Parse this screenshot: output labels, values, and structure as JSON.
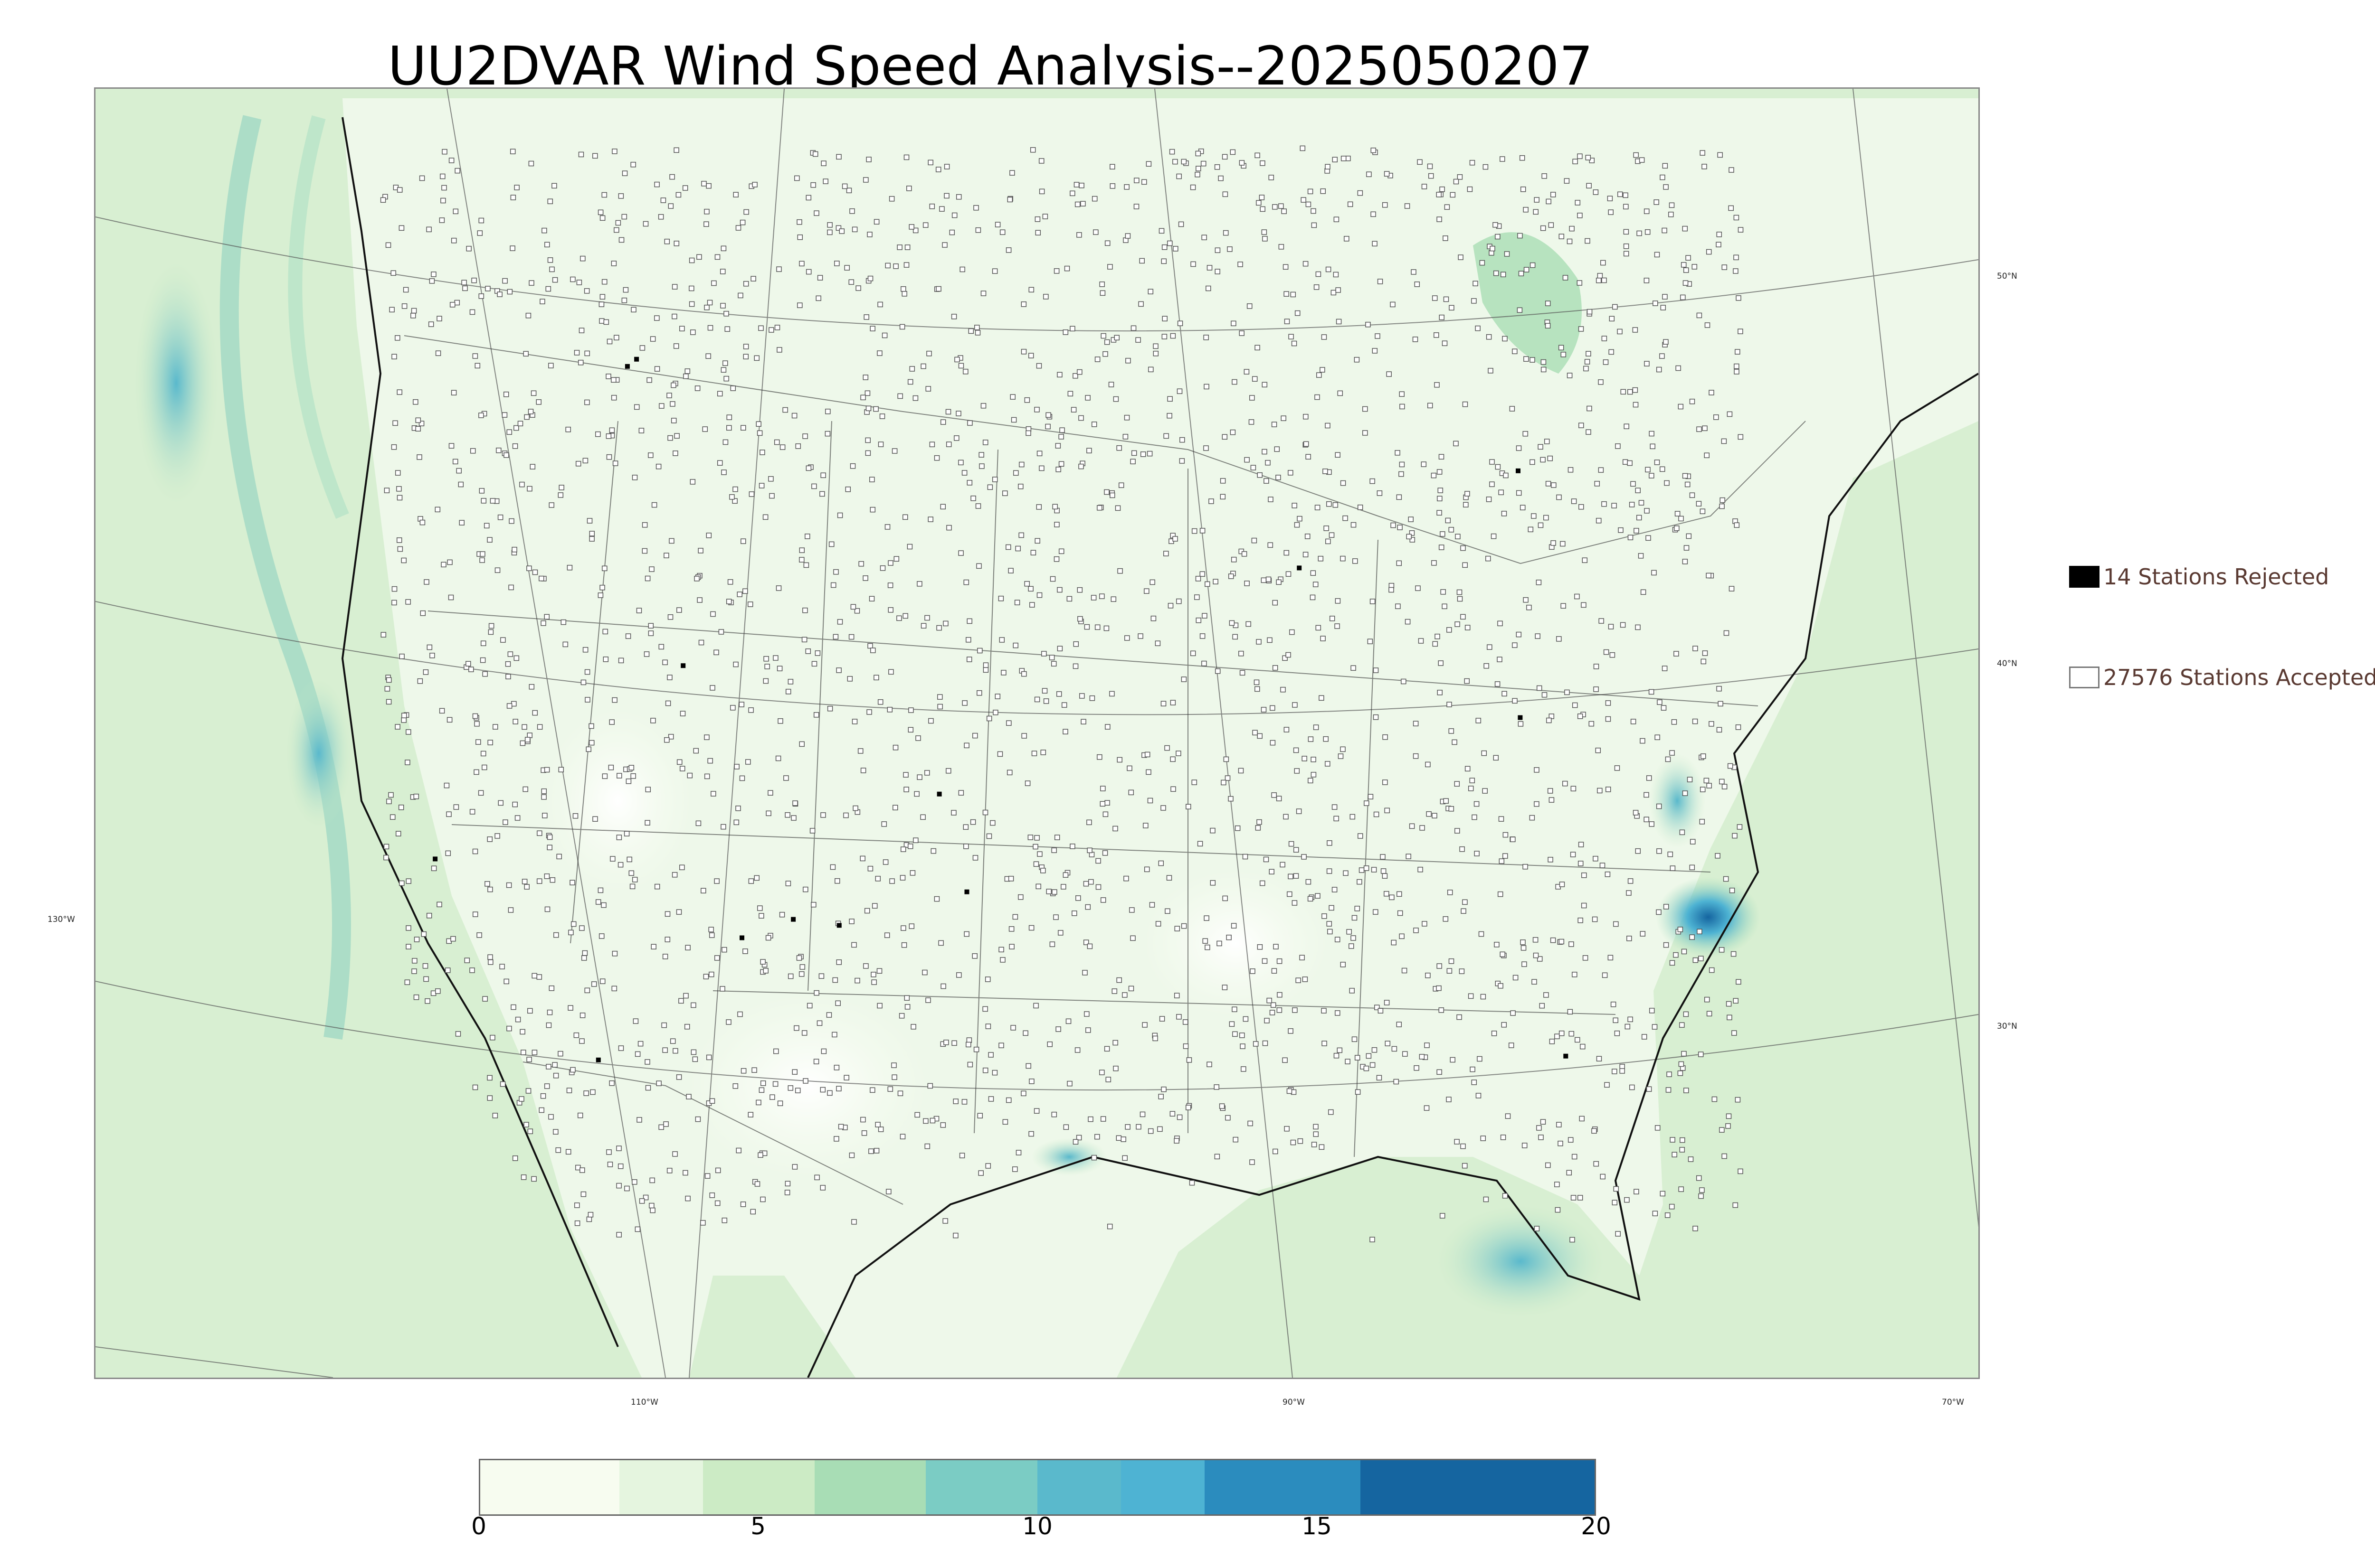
{
  "title": "UU2DVAR Wind Speed Analysis--2025050207",
  "map": {
    "lat_labels": [
      "50°N",
      "40°N",
      "30°N"
    ],
    "lon_labels": [
      "130°W",
      "110°W",
      "90°W",
      "70°W"
    ]
  },
  "legend": {
    "rejected_label": "14 Stations Rejected",
    "accepted_label": "27576 Stations Accepted"
  },
  "colorbar": {
    "ticks": [
      "0",
      "5",
      "10",
      "15",
      "20"
    ],
    "min": 0,
    "max": 20,
    "colors": [
      "#f7fcf0",
      "#e5f5df",
      "#ccebc5",
      "#a8ddb5",
      "#7bccc4",
      "#5ab9cc",
      "#4eb3d3",
      "#2b8cbe",
      "#1565a0"
    ],
    "bounds": [
      0,
      2.5,
      4,
      6,
      8,
      10,
      11.5,
      13,
      15.8,
      20
    ]
  }
}
